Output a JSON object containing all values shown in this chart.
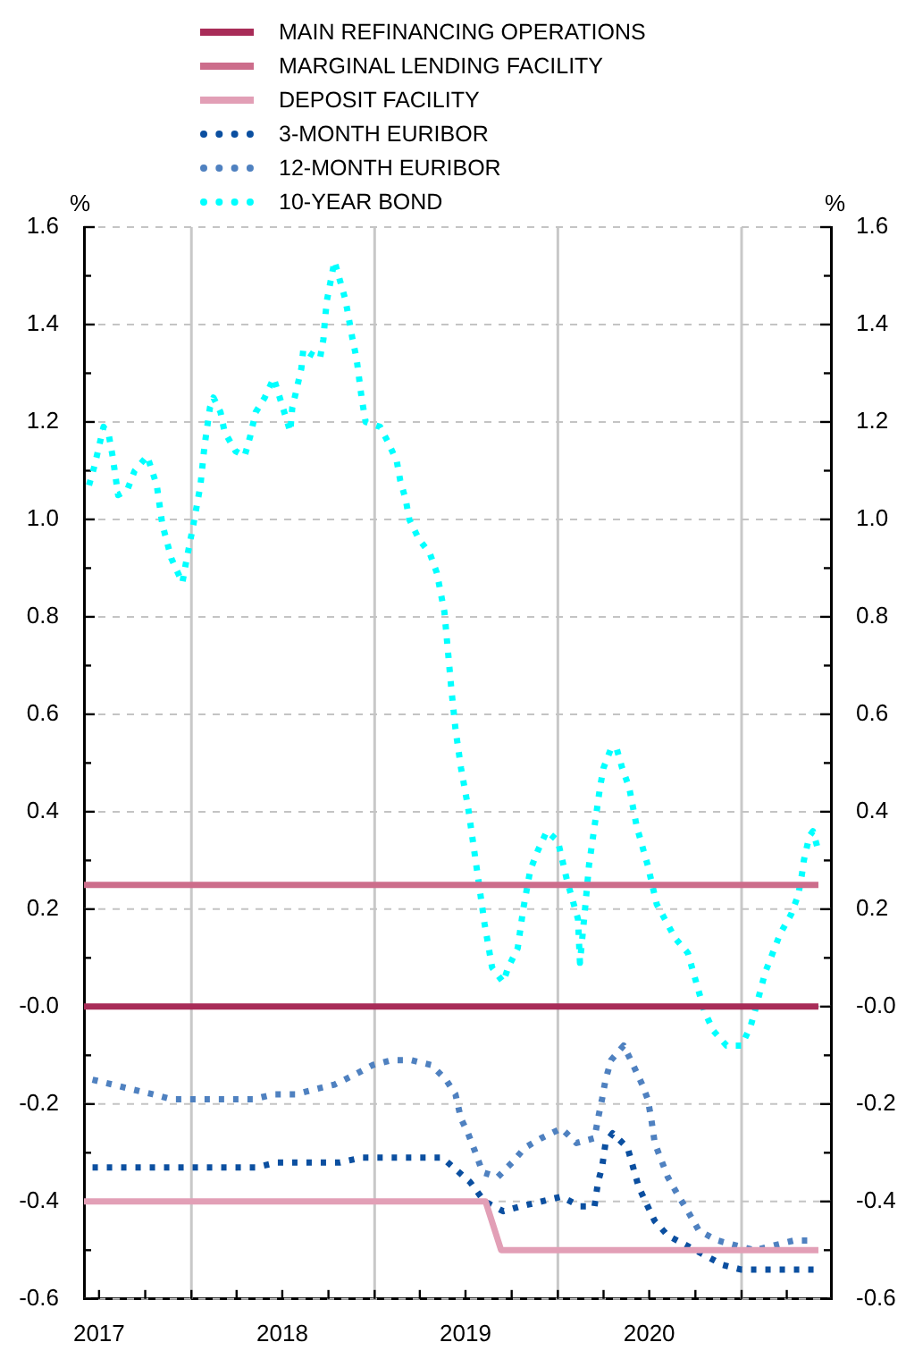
{
  "chart_data": {
    "type": "line",
    "ylabel": "%",
    "y2label": "%",
    "grid": true,
    "legend": "top",
    "marker": "none",
    "xlim": [
      "2017-06-01",
      "2021-06-28"
    ],
    "xticks": [
      {
        "value": "2017-07-01",
        "label": "2017"
      },
      {
        "value": "2017-10-01",
        "label": null
      },
      {
        "value": "2018-01-01",
        "label": null
      },
      {
        "value": "2018-04-01",
        "label": null
      },
      {
        "value": "2018-07-01",
        "label": "2018"
      },
      {
        "value": "2018-10-01",
        "label": null
      },
      {
        "value": "2019-01-01",
        "label": null
      },
      {
        "value": "2019-04-01",
        "label": null
      },
      {
        "value": "2019-07-01",
        "label": "2019"
      },
      {
        "value": "2019-10-01",
        "label": null
      },
      {
        "value": "2020-01-01",
        "label": null
      },
      {
        "value": "2020-04-01",
        "label": null
      },
      {
        "value": "2020-07-01",
        "label": "2020"
      },
      {
        "value": "2020-10-01",
        "label": null
      },
      {
        "value": "2021-01-01",
        "label": null
      },
      {
        "value": "2021-04-01",
        "label": null
      }
    ],
    "ylim": [
      -0.6,
      1.6
    ],
    "yticks": [
      -0.6,
      {
        "value": -0.5,
        "label": null
      },
      -0.4,
      {
        "value": -0.3,
        "label": null
      },
      -0.2,
      {
        "value": -0.1,
        "label": null
      },
      {
        "value": 0,
        "label": "-0.0"
      },
      {
        "value": 0.1,
        "label": null
      },
      0.2,
      {
        "value": 0.3,
        "label": null
      },
      0.4,
      {
        "value": 0.5,
        "label": null
      },
      0.6,
      {
        "value": 0.7,
        "label": null
      },
      0.8,
      {
        "value": 0.9,
        "label": null
      },
      {
        "value": 1.0,
        "label": "1.0"
      },
      {
        "value": 1.1,
        "label": null
      },
      1.2,
      {
        "value": 1.3,
        "label": null
      },
      1.4,
      {
        "value": 1.5,
        "label": null
      },
      1.6
    ],
    "y2lim": [
      -0.6,
      1.6
    ],
    "y2ticks": [
      -0.6,
      {
        "value": -0.5,
        "label": null
      },
      -0.4,
      {
        "value": -0.3,
        "label": null
      },
      -0.2,
      {
        "value": -0.1,
        "label": null
      },
      {
        "value": 0,
        "label": "-0.0"
      },
      {
        "value": 0.1,
        "label": null
      },
      0.2,
      {
        "value": 0.3,
        "label": null
      },
      0.4,
      {
        "value": 0.5,
        "label": null
      },
      0.6,
      {
        "value": 0.7,
        "label": null
      },
      0.8,
      {
        "value": 0.9,
        "label": null
      },
      {
        "value": 1.0,
        "label": "1.0"
      },
      {
        "value": 1.1,
        "label": null
      },
      1.2,
      {
        "value": 1.3,
        "label": null
      },
      1.4,
      {
        "value": 1.5,
        "label": null
      },
      1.6
    ],
    "series": [
      {
        "name": "MAIN REFINANCING OPERATIONS",
        "color": "#a82c58",
        "line_style": "solid",
        "x": [
          "2017-06-01",
          "2021-06-03"
        ],
        "values": [
          0,
          0
        ]
      },
      {
        "name": "MARGINAL LENDING FACILITY",
        "color": "#cc6d8b",
        "line_style": "solid",
        "x": [
          "2017-06-01",
          "2021-06-03"
        ],
        "values": [
          0.25,
          0.25
        ]
      },
      {
        "name": "DEPOSIT FACILITY",
        "color": "#e29fb6",
        "line_style": "solid",
        "x": [
          "2017-06-01",
          "2019-08-10",
          "2019-09-10",
          "2021-06-03"
        ],
        "values": [
          -0.4,
          -0.4,
          -0.5,
          -0.5
        ]
      },
      {
        "name": "3-MONTH EURIBOR",
        "color": "#0b4fa0",
        "line_style": "dotted",
        "x": [
          "2017-06-18",
          "2017-07-28",
          "2017-09-05",
          "2017-10-16",
          "2017-11-22",
          "2018-01-01",
          "2018-02-14",
          "2018-03-30",
          "2018-05-09",
          "2018-06-21",
          "2018-08-04",
          "2018-09-10",
          "2018-10-24",
          "2018-12-06",
          "2019-01-12",
          "2019-02-21",
          "2019-04-05",
          "2019-05-16",
          "2019-06-18",
          "2019-07-10",
          "2019-08-08",
          "2019-09-14",
          "2019-10-19",
          "2019-11-29",
          "2020-01-08",
          "2020-02-14",
          "2020-03-14",
          "2020-03-21",
          "2020-03-29",
          "2020-04-05",
          "2020-04-19",
          "2020-05-19",
          "2020-05-30",
          "2020-06-10",
          "2020-06-28",
          "2020-07-12",
          "2020-08-07",
          "2020-09-13",
          "2020-10-19",
          "2020-11-24",
          "2021-01-01",
          "2021-02-10",
          "2021-03-21",
          "2021-05-01",
          "2021-06-06"
        ],
        "values": [
          -0.33,
          -0.33,
          -0.33,
          -0.33,
          -0.33,
          -0.33,
          -0.33,
          -0.33,
          -0.33,
          -0.32,
          -0.32,
          -0.32,
          -0.32,
          -0.31,
          -0.31,
          -0.31,
          -0.31,
          -0.31,
          -0.34,
          -0.36,
          -0.4,
          -0.42,
          -0.41,
          -0.4,
          -0.39,
          -0.41,
          -0.41,
          -0.36,
          -0.33,
          -0.28,
          -0.26,
          -0.29,
          -0.33,
          -0.37,
          -0.41,
          -0.44,
          -0.47,
          -0.49,
          -0.51,
          -0.53,
          -0.54,
          -0.54,
          -0.54,
          -0.54,
          -0.54
        ]
      },
      {
        "name": "12-MONTH EURIBOR",
        "color": "#4f81c0",
        "line_style": "dotted",
        "x": [
          "2017-06-18",
          "2017-07-28",
          "2017-09-05",
          "2017-10-16",
          "2017-11-22",
          "2018-01-01",
          "2018-02-14",
          "2018-03-26",
          "2018-05-05",
          "2018-06-14",
          "2018-07-28",
          "2018-09-03",
          "2018-10-13",
          "2018-11-22",
          "2018-12-28",
          "2019-02-03",
          "2019-03-15",
          "2019-04-24",
          "2019-05-23",
          "2019-06-11",
          "2019-06-22",
          "2019-07-06",
          "2019-07-21",
          "2019-08-04",
          "2019-09-03",
          "2019-10-02",
          "2019-10-27",
          "2019-11-29",
          "2020-01-08",
          "2020-02-07",
          "2020-03-14",
          "2020-03-21",
          "2020-03-29",
          "2020-04-05",
          "2020-04-16",
          "2020-05-11",
          "2020-05-30",
          "2020-06-17",
          "2020-06-28",
          "2020-07-05",
          "2020-07-12",
          "2020-08-07",
          "2020-08-29",
          "2020-09-16",
          "2020-10-08",
          "2020-11-14",
          "2020-12-20",
          "2021-01-27",
          "2021-03-07",
          "2021-04-16",
          "2021-05-26"
        ],
        "values": [
          -0.15,
          -0.16,
          -0.17,
          -0.18,
          -0.19,
          -0.19,
          -0.19,
          -0.19,
          -0.19,
          -0.18,
          -0.18,
          -0.17,
          -0.16,
          -0.14,
          -0.12,
          -0.11,
          -0.11,
          -0.12,
          -0.15,
          -0.18,
          -0.23,
          -0.26,
          -0.3,
          -0.34,
          -0.35,
          -0.32,
          -0.29,
          -0.27,
          -0.25,
          -0.28,
          -0.27,
          -0.23,
          -0.19,
          -0.15,
          -0.11,
          -0.08,
          -0.12,
          -0.16,
          -0.19,
          -0.23,
          -0.28,
          -0.35,
          -0.39,
          -0.42,
          -0.46,
          -0.48,
          -0.49,
          -0.5,
          -0.49,
          -0.48,
          -0.48
        ]
      },
      {
        "name": "10-YEAR BOND",
        "color": "#00ffff",
        "line_style": "dotted",
        "x": [
          "2017-06-11",
          "2017-06-22",
          "2017-07-10",
          "2017-07-21",
          "2017-07-28",
          "2017-08-08",
          "2017-08-26",
          "2017-09-10",
          "2017-10-05",
          "2017-10-24",
          "2017-11-04",
          "2017-11-22",
          "2017-12-14",
          "2017-12-21",
          "2018-01-05",
          "2018-01-19",
          "2018-01-27",
          "2018-02-07",
          "2018-02-14",
          "2018-02-28",
          "2018-03-08",
          "2018-03-30",
          "2018-04-17",
          "2018-04-28",
          "2018-05-09",
          "2018-05-27",
          "2018-06-14",
          "2018-06-29",
          "2018-07-17",
          "2018-07-21",
          "2018-07-28",
          "2018-08-08",
          "2018-08-12",
          "2018-08-26",
          "2018-09-14",
          "2018-09-21",
          "2018-09-24",
          "2018-09-28",
          "2018-10-13",
          "2018-10-24",
          "2018-11-04",
          "2018-11-11",
          "2018-11-18",
          "2018-11-26",
          "2018-12-06",
          "2018-12-14",
          "2019-01-12",
          "2019-01-27",
          "2019-02-14",
          "2019-02-21",
          "2019-03-04",
          "2019-03-11",
          "2019-03-30",
          "2019-04-21",
          "2019-05-05",
          "2019-05-20",
          "2019-05-27",
          "2019-06-03",
          "2019-06-11",
          "2019-06-22",
          "2019-07-06",
          "2019-07-17",
          "2019-07-28",
          "2019-08-08",
          "2019-08-23",
          "2019-09-14",
          "2019-09-24",
          "2019-10-13",
          "2019-10-24",
          "2019-11-07",
          "2019-11-22",
          "2019-12-10",
          "2020-01-01",
          "2020-01-19",
          "2020-01-30",
          "2020-02-10",
          "2020-02-14",
          "2020-02-25",
          "2020-03-03",
          "2020-03-14",
          "2020-03-25",
          "2020-04-01",
          "2020-04-16",
          "2020-04-27",
          "2020-05-08",
          "2020-05-22",
          "2020-06-06",
          "2020-06-28",
          "2020-07-16",
          "2020-08-22",
          "2020-09-16",
          "2020-10-08",
          "2020-10-19",
          "2020-11-06",
          "2020-12-02",
          "2021-01-01",
          "2021-01-19",
          "2021-01-30",
          "2021-02-17",
          "2021-03-19",
          "2021-04-10",
          "2021-04-24",
          "2021-05-01",
          "2021-05-05",
          "2021-05-16",
          "2021-05-23",
          "2021-06-03"
        ],
        "values": [
          1.07,
          1.11,
          1.19,
          1.17,
          1.13,
          1.05,
          1.06,
          1.1,
          1.13,
          1.07,
          0.99,
          0.92,
          0.87,
          0.91,
          0.99,
          1.07,
          1.15,
          1.23,
          1.25,
          1.22,
          1.18,
          1.14,
          1.13,
          1.17,
          1.22,
          1.25,
          1.29,
          1.24,
          1.18,
          1.23,
          1.26,
          1.31,
          1.35,
          1.34,
          1.33,
          1.37,
          1.41,
          1.45,
          1.53,
          1.49,
          1.45,
          1.41,
          1.37,
          1.33,
          1.25,
          1.2,
          1.19,
          1.16,
          1.12,
          1.08,
          1.04,
          1.0,
          0.96,
          0.93,
          0.89,
          0.81,
          0.73,
          0.65,
          0.57,
          0.49,
          0.41,
          0.33,
          0.25,
          0.17,
          0.08,
          0.05,
          0.08,
          0.12,
          0.2,
          0.28,
          0.32,
          0.36,
          0.34,
          0.26,
          0.22,
          0.18,
          0.09,
          0.21,
          0.29,
          0.37,
          0.45,
          0.49,
          0.53,
          0.53,
          0.49,
          0.45,
          0.37,
          0.29,
          0.21,
          0.14,
          0.11,
          0.03,
          -0.01,
          -0.05,
          -0.08,
          -0.08,
          -0.04,
          0.0,
          0.07,
          0.15,
          0.19,
          0.23,
          0.27,
          0.3,
          0.35,
          0.36,
          0.32
        ]
      }
    ]
  }
}
